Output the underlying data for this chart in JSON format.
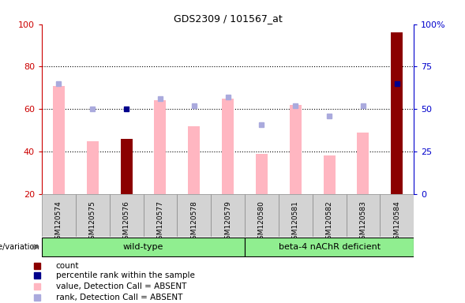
{
  "title": "GDS2309 / 101567_at",
  "samples": [
    "GSM120574",
    "GSM120575",
    "GSM120576",
    "GSM120577",
    "GSM120578",
    "GSM120579",
    "GSM120580",
    "GSM120581",
    "GSM120582",
    "GSM120583",
    "GSM120584"
  ],
  "pink_bar_heights": [
    71,
    45,
    null,
    64,
    52,
    65,
    39,
    62,
    38,
    49,
    null
  ],
  "dark_red_bar_heights": [
    null,
    null,
    46,
    null,
    null,
    null,
    null,
    null,
    null,
    null,
    96
  ],
  "blue_dot_y_right": [
    null,
    null,
    50,
    null,
    null,
    null,
    null,
    null,
    null,
    null,
    65
  ],
  "blue_square_y_right": [
    65,
    50,
    null,
    56,
    52,
    57,
    41,
    52,
    46,
    52,
    null
  ],
  "ylim_left": [
    20,
    100
  ],
  "ylim_right": [
    0,
    100
  ],
  "yticks_left": [
    20,
    40,
    60,
    80,
    100
  ],
  "yticks_right": [
    0,
    25,
    50,
    75,
    100
  ],
  "ytick_labels_right": [
    "0",
    "25",
    "50",
    "75",
    "100%"
  ],
  "bar_width": 0.35,
  "pink_color": "#ffb6c1",
  "dark_red_color": "#8b0000",
  "blue_dot_color": "#00008b",
  "blue_square_color": "#aaaadd",
  "left_axis_color": "#cc0000",
  "right_axis_color": "#0000cc",
  "green_color": "#90ee90",
  "gray_color": "#d3d3d3",
  "wt_span": [
    0,
    5
  ],
  "beta_span": [
    6,
    10
  ],
  "legend_items": [
    "count",
    "percentile rank within the sample",
    "value, Detection Call = ABSENT",
    "rank, Detection Call = ABSENT"
  ],
  "legend_colors": [
    "#8b0000",
    "#00008b",
    "#ffb6c1",
    "#aaaadd"
  ]
}
